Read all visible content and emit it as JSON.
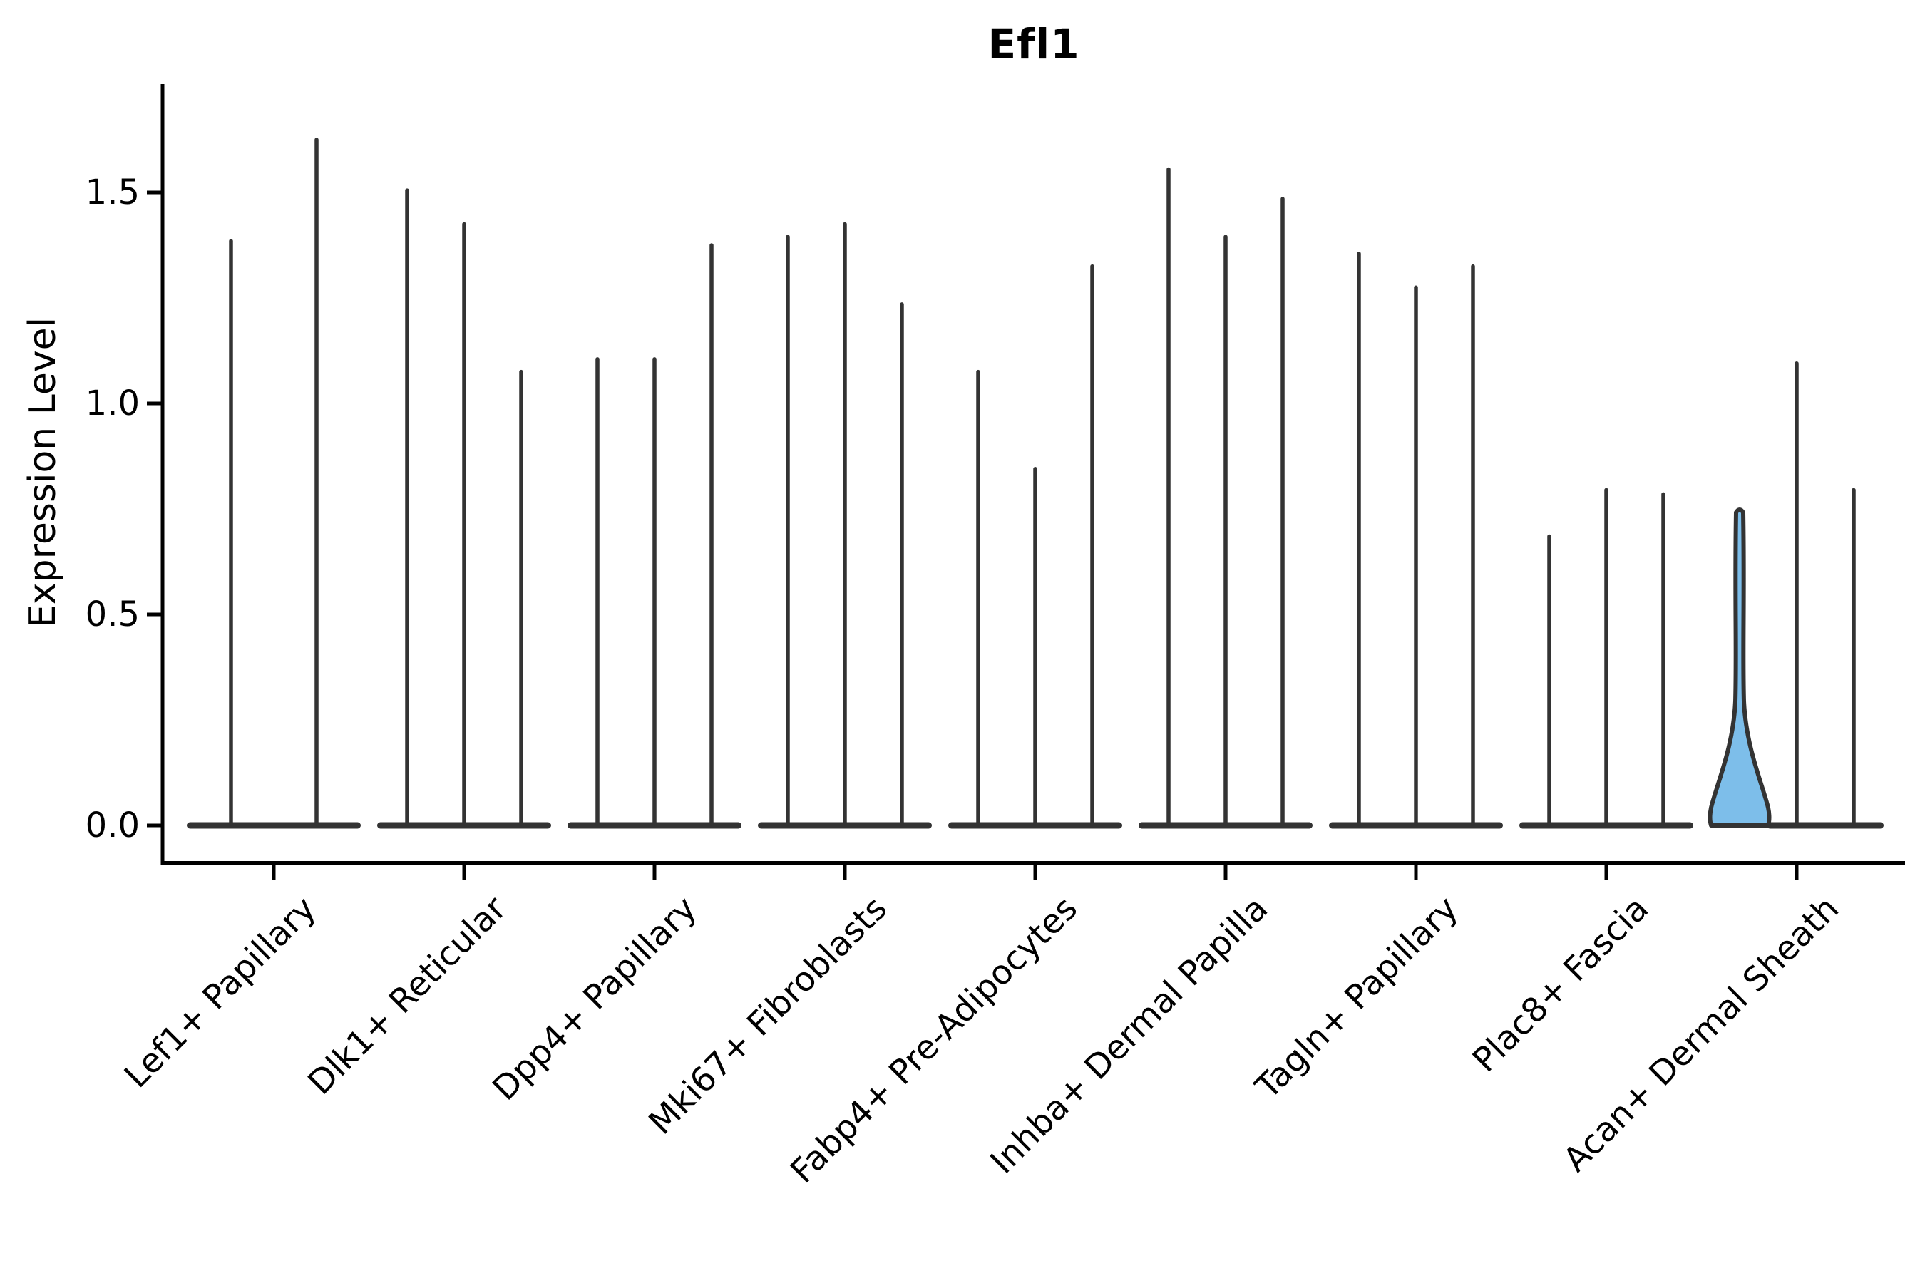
{
  "chart_data": {
    "type": "violin",
    "title": "Efl1",
    "ylabel": "Expression Level",
    "xlabel": "",
    "grid": false,
    "legend": null,
    "ylim": [
      -0.08,
      1.76
    ],
    "yticks": [
      {
        "value": 0.0,
        "label": "0.0"
      },
      {
        "value": 0.5,
        "label": "0.5"
      },
      {
        "value": 1.0,
        "label": "1.0"
      },
      {
        "value": 1.5,
        "label": "1.5"
      }
    ],
    "categories": [
      "Lef1+ Papillary",
      "Dlk1+ Reticular",
      "Dpp4+ Papillary",
      "Mki67+ Fibroblasts",
      "Fabp4+ Pre-Adipocytes",
      "Inhba+ Dermal Papilla",
      "Tagln+ Papillary",
      "Plac8+ Fascia",
      "Acan+ Dermal Sheath"
    ],
    "groups": [
      {
        "category": "Lef1+ Papillary",
        "violins": [
          {
            "max": 1.39,
            "highlighted": false
          },
          {
            "max": 1.63,
            "highlighted": false
          }
        ]
      },
      {
        "category": "Dlk1+ Reticular",
        "violins": [
          {
            "max": 1.51,
            "highlighted": false
          },
          {
            "max": 1.43,
            "highlighted": false
          },
          {
            "max": 1.08,
            "highlighted": false
          }
        ]
      },
      {
        "category": "Dpp4+ Papillary",
        "violins": [
          {
            "max": 1.11,
            "highlighted": false
          },
          {
            "max": 1.11,
            "highlighted": false
          },
          {
            "max": 1.38,
            "highlighted": false
          }
        ]
      },
      {
        "category": "Mki67+ Fibroblasts",
        "violins": [
          {
            "max": 1.4,
            "highlighted": false
          },
          {
            "max": 1.43,
            "highlighted": false
          },
          {
            "max": 1.24,
            "highlighted": false
          }
        ]
      },
      {
        "category": "Fabp4+ Pre-Adipocytes",
        "violins": [
          {
            "max": 1.08,
            "highlighted": false
          },
          {
            "max": 0.85,
            "highlighted": false
          },
          {
            "max": 1.33,
            "highlighted": false
          }
        ]
      },
      {
        "category": "Inhba+ Dermal Papilla",
        "violins": [
          {
            "max": 1.56,
            "highlighted": false
          },
          {
            "max": 1.4,
            "highlighted": false
          },
          {
            "max": 1.49,
            "highlighted": false
          }
        ]
      },
      {
        "category": "Tagln+ Papillary",
        "violins": [
          {
            "max": 1.36,
            "highlighted": false
          },
          {
            "max": 1.28,
            "highlighted": false
          },
          {
            "max": 1.33,
            "highlighted": false
          }
        ]
      },
      {
        "category": "Plac8+ Fascia",
        "violins": [
          {
            "max": 0.69,
            "highlighted": false
          },
          {
            "max": 0.8,
            "highlighted": false
          },
          {
            "max": 0.79,
            "highlighted": false
          }
        ]
      },
      {
        "category": "Acan+ Dermal Sheath",
        "violins": [
          {
            "max": 0.75,
            "highlighted": true
          },
          {
            "max": 1.1,
            "highlighted": false
          },
          {
            "max": 0.8,
            "highlighted": false
          }
        ]
      }
    ],
    "colors": {
      "violin": "#333333",
      "highlight_fill": "#7dbeea",
      "axis": "#000000",
      "text": "#000000",
      "background": "#ffffff"
    }
  }
}
